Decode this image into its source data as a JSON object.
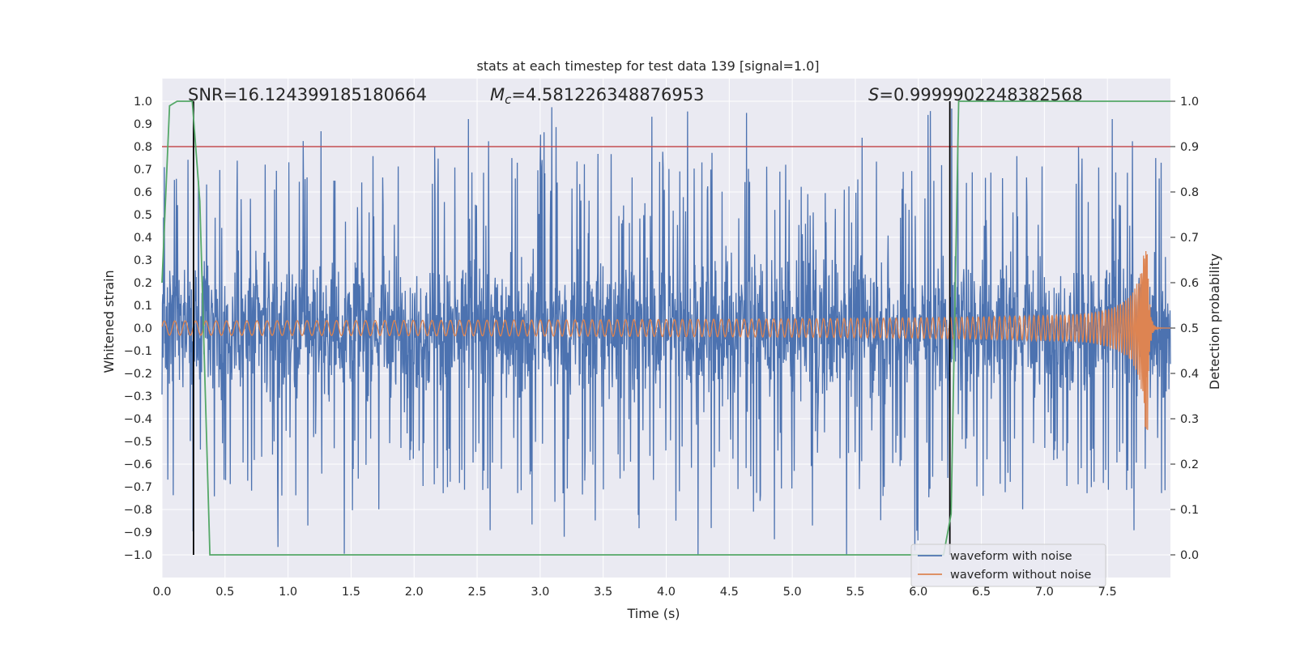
{
  "chart_data": {
    "type": "line",
    "title": "stats at each timestep for test data 139 [signal=1.0]",
    "xlabel": "Time (s)",
    "ylabel_left": "Whitened strain",
    "ylabel_right": "Detection probability",
    "xlim": [
      0.0,
      8.0
    ],
    "ylim_left": [
      -1.1,
      1.1
    ],
    "ylim_right": [
      -0.05,
      1.05
    ],
    "x_ticks": [
      "0.0",
      "0.5",
      "1.0",
      "1.5",
      "2.0",
      "2.5",
      "3.0",
      "3.5",
      "4.0",
      "4.5",
      "5.0",
      "5.5",
      "6.0",
      "6.5",
      "7.0",
      "7.5"
    ],
    "y_ticks_left": [
      "1.0",
      "0.9",
      "0.8",
      "0.7",
      "0.6",
      "0.5",
      "0.4",
      "0.3",
      "0.2",
      "0.1",
      "0.0",
      "−0.1",
      "−0.2",
      "−0.3",
      "−0.4",
      "−0.5",
      "−0.6",
      "−0.7",
      "−0.8",
      "−0.9",
      "−1.0"
    ],
    "y_ticks_right": [
      "1.0",
      "0.9",
      "0.8",
      "0.7",
      "0.6",
      "0.5",
      "0.4",
      "0.3",
      "0.2",
      "0.1",
      "0.0"
    ],
    "annotations": {
      "snr": "SNR=16.124399185180664",
      "mc_symbol": "M",
      "mc_subscript": "c",
      "mc_value": "=4.581226348876953",
      "s_symbol": "S",
      "s_value": "=0.9999902248382568"
    },
    "threshold": {
      "value": 0.8,
      "axis": "left",
      "color": "#c44e52"
    },
    "vertical_markers": [
      0.25,
      6.25
    ],
    "series": [
      {
        "name": "waveform with noise",
        "color": "#4c72b0",
        "axis": "left",
        "description": "noisy strain, amplitude ~0.5, peaks to about ±1.0"
      },
      {
        "name": "waveform without noise",
        "color": "#dd8452",
        "axis": "left",
        "description": "chirp, amplitude grows from 0.03 to 0.45 at t=7.82 s, then ringdown"
      },
      {
        "name": "detection probability",
        "color": "#55a868",
        "axis": "right",
        "x": [
          0.0,
          0.06,
          0.12,
          0.18,
          0.24,
          0.3,
          0.38,
          6.2,
          6.26,
          6.32,
          8.0
        ],
        "values": [
          0.6,
          0.99,
          1.0,
          1.0,
          1.0,
          0.78,
          0.0,
          0.0,
          0.09,
          1.0,
          1.0
        ]
      }
    ],
    "legend": {
      "position": "lower right",
      "entries": [
        "waveform with noise",
        "waveform without noise"
      ]
    },
    "colors": {
      "background": "#eaeaf2",
      "grid": "#ffffff",
      "marker": "#000000"
    }
  }
}
